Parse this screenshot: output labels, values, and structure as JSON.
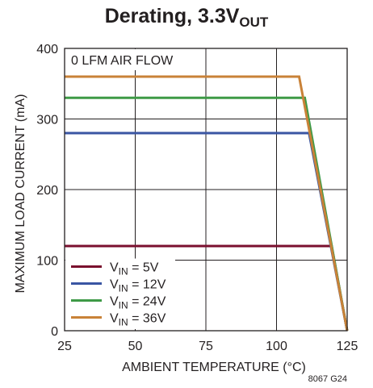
{
  "chart_data": {
    "type": "line",
    "title_main": "Derating, 3.3V",
    "title_sub": "OUT",
    "xlabel": "AMBIENT TEMPERATURE (°C)",
    "ylabel": "MAXIMUM LOAD CURRENT (mA)",
    "xlim": [
      25,
      125
    ],
    "ylim": [
      0,
      400
    ],
    "xticks": [
      25,
      50,
      75,
      100,
      125
    ],
    "yticks": [
      0,
      100,
      200,
      300,
      400
    ],
    "grid": true,
    "annotation": "0 LFM AIR FLOW",
    "figure_code": "8067 G24",
    "legend_position": "bottom-left",
    "series": [
      {
        "label_v": "V",
        "label_sub": "IN",
        "label_rest": " = 5V",
        "color": "#7a0f2e",
        "x": [
          25,
          119.5,
          125
        ],
        "y": [
          120,
          120,
          0
        ]
      },
      {
        "label_v": "V",
        "label_sub": "IN",
        "label_rest": " = 12V",
        "color": "#3a56a3",
        "x": [
          25,
          111.5,
          125
        ],
        "y": [
          280,
          280,
          0
        ]
      },
      {
        "label_v": "V",
        "label_sub": "IN",
        "label_rest": " = 24V",
        "color": "#3e9a47",
        "x": [
          25,
          110,
          125
        ],
        "y": [
          330,
          330,
          0
        ]
      },
      {
        "label_v": "V",
        "label_sub": "IN",
        "label_rest": " = 36V",
        "color": "#c98238",
        "x": [
          25,
          108,
          125
        ],
        "y": [
          360,
          360,
          0
        ]
      }
    ]
  }
}
